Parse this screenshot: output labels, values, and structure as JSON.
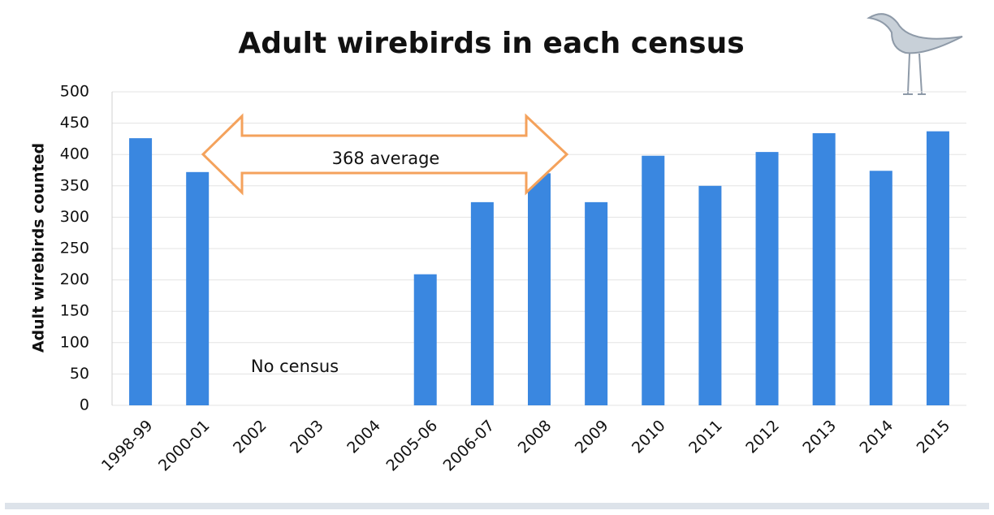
{
  "chart_data": {
    "type": "bar",
    "title": "Adult wirebirds in each census",
    "y_label": "Adult wirebirds counted",
    "categories": [
      "1998-99",
      "2000-01",
      "2002",
      "2003",
      "2004",
      "2005-06",
      "2006-07",
      "2008",
      "2009",
      "2010",
      "2011",
      "2012",
      "2013",
      "2014",
      "2015"
    ],
    "values": [
      426,
      372,
      null,
      null,
      null,
      209,
      324,
      370,
      324,
      398,
      350,
      404,
      434,
      374,
      437
    ],
    "color": "#3a87e0",
    "ylim": [
      0,
      500
    ],
    "yticks": [
      0,
      50,
      100,
      150,
      200,
      250,
      300,
      350,
      400,
      450,
      500
    ],
    "grid": true,
    "annotations": [
      "368 average",
      "No census"
    ]
  }
}
